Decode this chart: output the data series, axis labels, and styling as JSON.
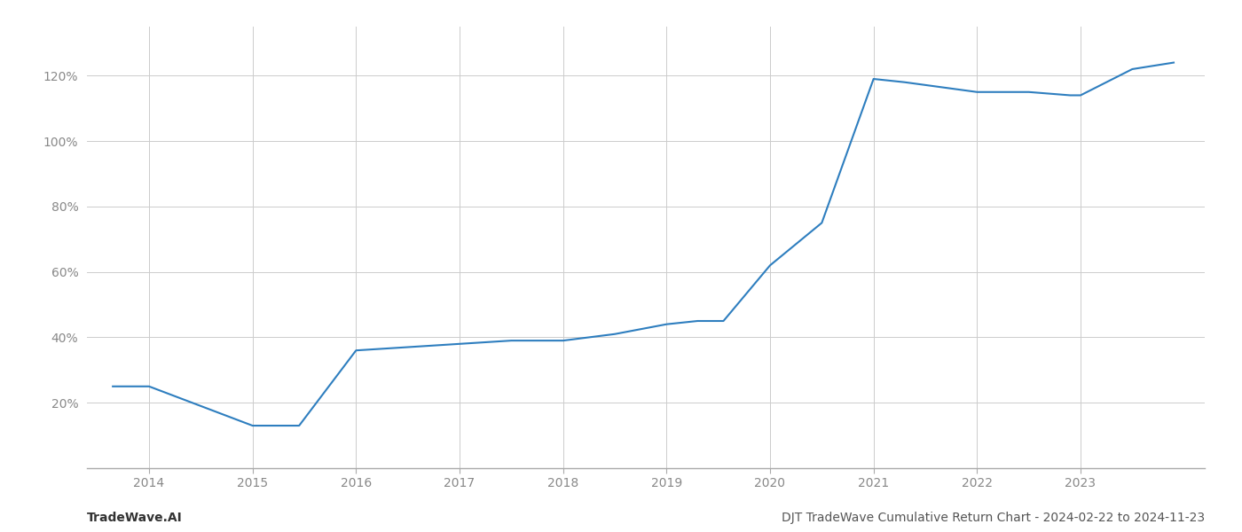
{
  "x_values": [
    2013.65,
    2014.0,
    2015.0,
    2015.45,
    2016.0,
    2016.5,
    2017.0,
    2017.5,
    2018.0,
    2018.5,
    2019.0,
    2019.3,
    2019.55,
    2020.0,
    2020.5,
    2021.0,
    2021.3,
    2022.0,
    2022.5,
    2022.9,
    2023.0,
    2023.5,
    2023.9
  ],
  "y_values": [
    25,
    25,
    13,
    13,
    36,
    37,
    38,
    39,
    39,
    41,
    44,
    45,
    45,
    62,
    75,
    119,
    118,
    115,
    115,
    114,
    114,
    122,
    124
  ],
  "line_color": "#2e7ebf",
  "line_width": 1.5,
  "title": "DJT TradeWave Cumulative Return Chart - 2024-02-22 to 2024-11-23",
  "watermark": "TradeWave.AI",
  "background_color": "#ffffff",
  "grid_color": "#cccccc",
  "xlim": [
    2013.4,
    2024.2
  ],
  "ylim": [
    0,
    135
  ],
  "xtick_labels": [
    "2014",
    "2015",
    "2016",
    "2017",
    "2018",
    "2019",
    "2020",
    "2021",
    "2022",
    "2023"
  ],
  "xtick_positions": [
    2014,
    2015,
    2016,
    2017,
    2018,
    2019,
    2020,
    2021,
    2022,
    2023
  ],
  "ytick_values": [
    20,
    40,
    60,
    80,
    100,
    120
  ],
  "title_fontsize": 10,
  "watermark_fontsize": 10,
  "tick_fontsize": 10,
  "tick_color": "#888888",
  "label_color": "#888888"
}
